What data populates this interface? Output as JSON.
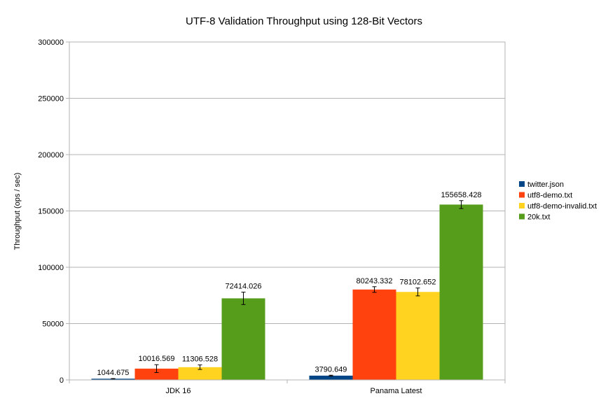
{
  "chart_data": {
    "type": "bar",
    "title": "UTF-8 Validation Throughput using 128-Bit Vectors",
    "xlabel": "",
    "ylabel": "Throughput (ops / sec)",
    "ylim": [
      0,
      300000
    ],
    "yticks": [
      0,
      50000,
      100000,
      150000,
      200000,
      250000,
      300000
    ],
    "grid": true,
    "legend_position": "right",
    "categories": [
      "JDK 16",
      "Panama Latest"
    ],
    "series": [
      {
        "name": "twitter.json",
        "color": "#004586",
        "values": [
          1044.675,
          3790.649
        ],
        "labels": [
          "1044.675",
          "3790.649"
        ],
        "errors": [
          150,
          400
        ]
      },
      {
        "name": "utf8-demo.txt",
        "color": "#ff420e",
        "values": [
          10016.569,
          80243.332
        ],
        "labels": [
          "10016.569",
          "80243.332"
        ],
        "errors": [
          3500,
          2500
        ]
      },
      {
        "name": "utf8-demo-invalid.txt",
        "color": "#ffd320",
        "values": [
          11306.528,
          78102.652
        ],
        "labels": [
          "11306.528",
          "78102.652"
        ],
        "errors": [
          2000,
          3500
        ]
      },
      {
        "name": "20k.txt",
        "color": "#579d1c",
        "values": [
          72414.026,
          155658.428
        ],
        "labels": [
          "72414.026",
          "155658.428"
        ],
        "errors": [
          5500,
          3500
        ]
      }
    ]
  }
}
